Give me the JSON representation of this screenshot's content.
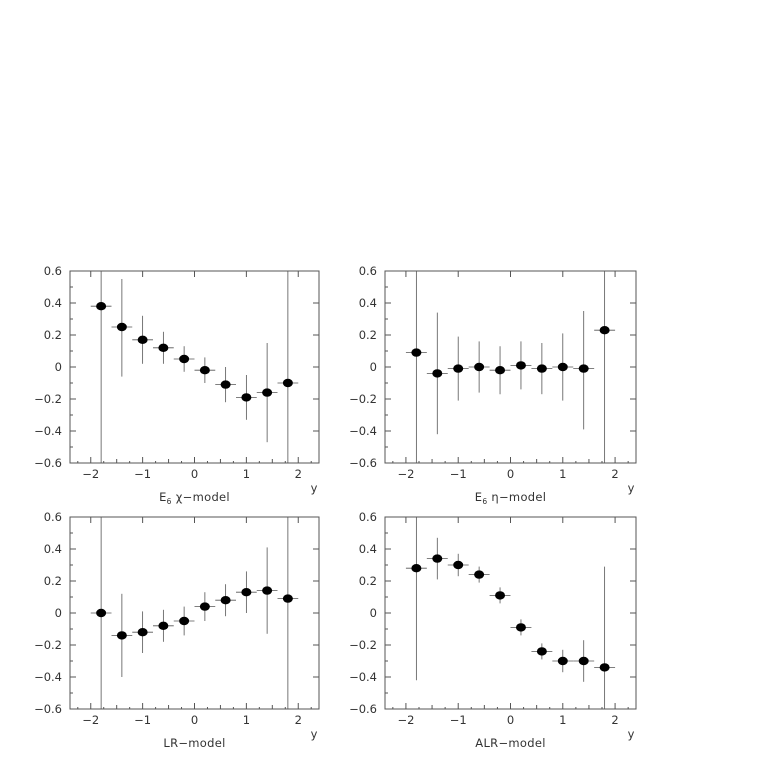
{
  "chart_data": [
    {
      "type": "scatter",
      "title": "",
      "caption_main": "E",
      "caption_sub": "6",
      "caption_symbol": "χ",
      "caption_rest": "−model",
      "xlabel": "y",
      "ylabel": "",
      "xlim": [
        -2.4,
        2.4
      ],
      "ylim": [
        -0.6,
        0.6
      ],
      "xticks": [
        -2,
        -1,
        0,
        1,
        2
      ],
      "xtick_labels": [
        "−2",
        "−1",
        "0",
        "1",
        "2"
      ],
      "yticks": [
        0.6,
        0.4,
        0.2,
        0,
        -0.2,
        -0.4,
        -0.6
      ],
      "ytick_labels": [
        "0.6",
        "0.4",
        "0.2",
        "0",
        "−0.2",
        "−0.4",
        "−0.6"
      ],
      "grid": false,
      "series": [
        {
          "x": [
            -1.8,
            -1.4,
            -1.0,
            -0.6,
            -0.2,
            0.2,
            0.6,
            1.0,
            1.4,
            1.8
          ],
          "y": [
            0.38,
            0.25,
            0.17,
            0.12,
            0.05,
            -0.02,
            -0.11,
            -0.19,
            -0.16,
            -0.1
          ],
          "x_err": 0.2,
          "y_err_low": [
            1.0,
            0.31,
            0.15,
            0.1,
            0.08,
            0.08,
            0.11,
            0.14,
            0.31,
            1.0
          ],
          "y_err_high": [
            1.0,
            0.3,
            0.15,
            0.1,
            0.08,
            0.08,
            0.11,
            0.14,
            0.31,
            1.0
          ]
        }
      ]
    },
    {
      "type": "scatter",
      "title": "",
      "caption_main": "E",
      "caption_sub": "6",
      "caption_symbol": "η",
      "caption_rest": "−model",
      "xlabel": "y",
      "ylabel": "",
      "xlim": [
        -2.4,
        2.4
      ],
      "ylim": [
        -0.6,
        0.6
      ],
      "xticks": [
        -2,
        -1,
        0,
        1,
        2
      ],
      "xtick_labels": [
        "−2",
        "−1",
        "0",
        "1",
        "2"
      ],
      "yticks": [
        0.6,
        0.4,
        0.2,
        0,
        -0.2,
        -0.4,
        -0.6
      ],
      "ytick_labels": [
        "0.6",
        "0.4",
        "0.2",
        "0",
        "−0.2",
        "−0.4",
        "−0.6"
      ],
      "grid": false,
      "series": [
        {
          "x": [
            -1.8,
            -1.4,
            -1.0,
            -0.6,
            -0.2,
            0.2,
            0.6,
            1.0,
            1.4,
            1.8
          ],
          "y": [
            0.09,
            -0.04,
            -0.01,
            0.0,
            -0.02,
            0.01,
            -0.01,
            0.0,
            -0.01,
            0.23
          ],
          "x_err": 0.2,
          "y_err_low": [
            1.0,
            0.38,
            0.2,
            0.16,
            0.15,
            0.15,
            0.16,
            0.21,
            0.38,
            1.0
          ],
          "y_err_high": [
            1.0,
            0.38,
            0.2,
            0.16,
            0.15,
            0.15,
            0.16,
            0.21,
            0.36,
            1.0
          ]
        }
      ]
    },
    {
      "type": "scatter",
      "title": "",
      "caption_main": "LR−model",
      "xlabel": "y",
      "ylabel": "",
      "xlim": [
        -2.4,
        2.4
      ],
      "ylim": [
        -0.6,
        0.6
      ],
      "xticks": [
        -2,
        -1,
        0,
        1,
        2
      ],
      "xtick_labels": [
        "−2",
        "−1",
        "0",
        "1",
        "2"
      ],
      "yticks": [
        0.6,
        0.4,
        0.2,
        0,
        -0.2,
        -0.4,
        -0.6
      ],
      "ytick_labels": [
        "0.6",
        "0.4",
        "0.2",
        "0",
        "−0.2",
        "−0.4",
        "−0.6"
      ],
      "grid": false,
      "series": [
        {
          "x": [
            -1.8,
            -1.4,
            -1.0,
            -0.6,
            -0.2,
            0.2,
            0.6,
            1.0,
            1.4,
            1.8
          ],
          "y": [
            0.0,
            -0.14,
            -0.12,
            -0.08,
            -0.05,
            0.04,
            0.08,
            0.13,
            0.14,
            0.09
          ],
          "x_err": 0.2,
          "y_err_low": [
            1.0,
            0.26,
            0.13,
            0.1,
            0.09,
            0.09,
            0.1,
            0.13,
            0.27,
            1.0
          ],
          "y_err_high": [
            1.0,
            0.26,
            0.13,
            0.1,
            0.09,
            0.09,
            0.1,
            0.13,
            0.27,
            1.0
          ]
        }
      ]
    },
    {
      "type": "scatter",
      "title": "",
      "caption_main": "ALR−model",
      "xlabel": "y",
      "ylabel": "",
      "xlim": [
        -2.4,
        2.4
      ],
      "ylim": [
        -0.6,
        0.6
      ],
      "xticks": [
        -2,
        -1,
        0,
        1,
        2
      ],
      "xtick_labels": [
        "−2",
        "−1",
        "0",
        "1",
        "2"
      ],
      "yticks": [
        0.6,
        0.4,
        0.2,
        0,
        -0.2,
        -0.4,
        -0.6
      ],
      "ytick_labels": [
        "0.6",
        "0.4",
        "0.2",
        "0",
        "−0.2",
        "−0.4",
        "−0.6"
      ],
      "grid": false,
      "series": [
        {
          "x": [
            -1.8,
            -1.4,
            -1.0,
            -0.6,
            -0.2,
            0.2,
            0.6,
            1.0,
            1.4,
            1.8
          ],
          "y": [
            0.28,
            0.34,
            0.3,
            0.24,
            0.11,
            -0.09,
            -0.24,
            -0.3,
            -0.3,
            -0.34
          ],
          "x_err": 0.2,
          "y_err_low": [
            0.7,
            0.13,
            0.07,
            0.05,
            0.05,
            0.05,
            0.05,
            0.07,
            0.13,
            0.26
          ],
          "y_err_high": [
            0.7,
            0.13,
            0.07,
            0.05,
            0.05,
            0.05,
            0.05,
            0.07,
            0.13,
            0.63
          ]
        }
      ]
    }
  ]
}
